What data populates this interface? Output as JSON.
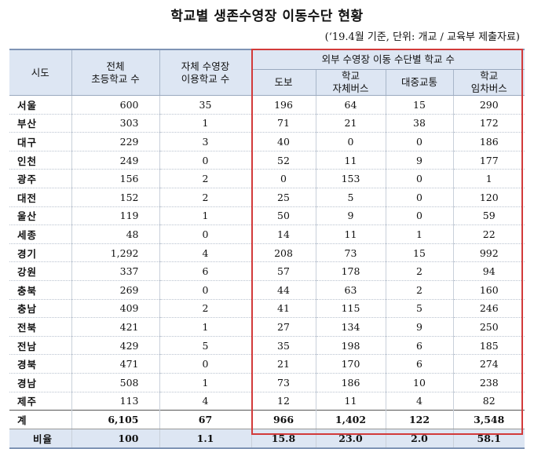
{
  "title": "학교별 생존수영장 이동수단 현황",
  "subtitle": "(‘19.4월 기준, 단위: 개교 / 교육부 제출자료)",
  "headers": {
    "region": "시도",
    "total_line1": "전체",
    "total_line2": "초등학교 수",
    "own_line1": "자체 수영장",
    "own_line2": "이용학교 수",
    "external_group": "외부 수영장 이동 수단별 학교 수",
    "walk": "도보",
    "school_bus_line1": "학교",
    "school_bus_line2": "자체버스",
    "public": "대중교통",
    "rent_line1": "학교",
    "rent_line2": "임차버스"
  },
  "rows": [
    {
      "region": "서울",
      "total": "600",
      "own": "35",
      "walk": "196",
      "bus": "64",
      "public": "15",
      "rent": "290"
    },
    {
      "region": "부산",
      "total": "303",
      "own": "1",
      "walk": "71",
      "bus": "21",
      "public": "38",
      "rent": "172"
    },
    {
      "region": "대구",
      "total": "229",
      "own": "3",
      "walk": "40",
      "bus": "0",
      "public": "0",
      "rent": "186"
    },
    {
      "region": "인천",
      "total": "249",
      "own": "0",
      "walk": "52",
      "bus": "11",
      "public": "9",
      "rent": "177"
    },
    {
      "region": "광주",
      "total": "156",
      "own": "2",
      "walk": "0",
      "bus": "153",
      "public": "0",
      "rent": "1"
    },
    {
      "region": "대전",
      "total": "152",
      "own": "2",
      "walk": "25",
      "bus": "5",
      "public": "0",
      "rent": "120"
    },
    {
      "region": "울산",
      "total": "119",
      "own": "1",
      "walk": "50",
      "bus": "9",
      "public": "0",
      "rent": "59"
    },
    {
      "region": "세종",
      "total": "48",
      "own": "0",
      "walk": "14",
      "bus": "11",
      "public": "1",
      "rent": "22"
    },
    {
      "region": "경기",
      "total": "1,292",
      "own": "4",
      "walk": "208",
      "bus": "73",
      "public": "15",
      "rent": "992"
    },
    {
      "region": "강원",
      "total": "337",
      "own": "6",
      "walk": "57",
      "bus": "178",
      "public": "2",
      "rent": "94"
    },
    {
      "region": "충북",
      "total": "269",
      "own": "0",
      "walk": "44",
      "bus": "63",
      "public": "2",
      "rent": "160"
    },
    {
      "region": "충남",
      "total": "409",
      "own": "2",
      "walk": "41",
      "bus": "115",
      "public": "5",
      "rent": "246"
    },
    {
      "region": "전북",
      "total": "421",
      "own": "1",
      "walk": "27",
      "bus": "134",
      "public": "9",
      "rent": "250"
    },
    {
      "region": "전남",
      "total": "429",
      "own": "5",
      "walk": "35",
      "bus": "198",
      "public": "6",
      "rent": "185"
    },
    {
      "region": "경북",
      "total": "471",
      "own": "0",
      "walk": "21",
      "bus": "170",
      "public": "6",
      "rent": "274"
    },
    {
      "region": "경남",
      "total": "508",
      "own": "1",
      "walk": "73",
      "bus": "186",
      "public": "10",
      "rent": "238"
    },
    {
      "region": "제주",
      "total": "113",
      "own": "4",
      "walk": "12",
      "bus": "11",
      "public": "4",
      "rent": "82"
    }
  ],
  "total_row": {
    "region": "계",
    "total": "6,105",
    "own": "67",
    "walk": "966",
    "bus": "1,402",
    "public": "122",
    "rent": "3,548"
  },
  "ratio_row": {
    "region": "비율",
    "total": "100",
    "own": "1.1",
    "walk": "15.8",
    "bus": "23.0",
    "public": "2.0",
    "rent": "58.1"
  },
  "colors": {
    "header_bg": "#dde6f3",
    "highlight_border": "#d23a3a"
  }
}
